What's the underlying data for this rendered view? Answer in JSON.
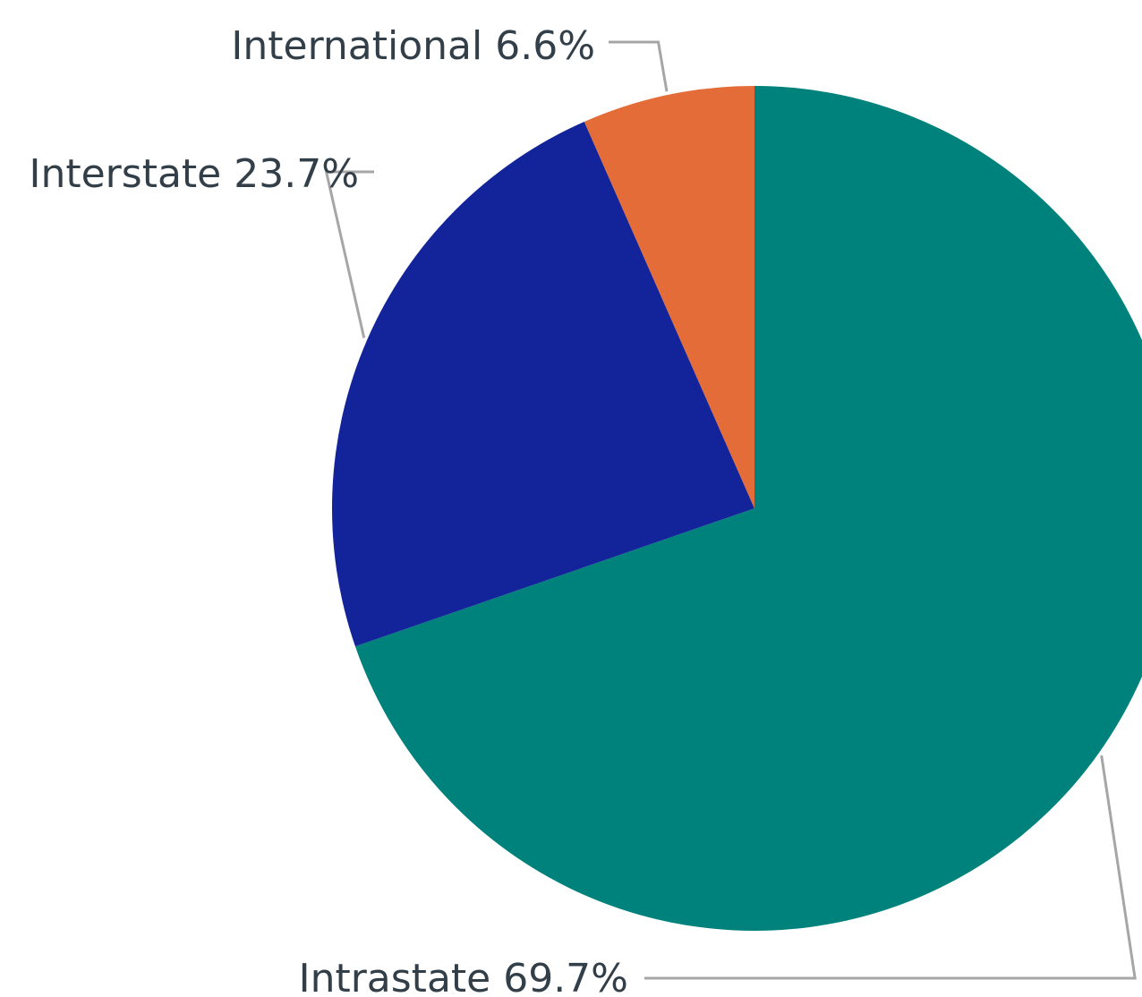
{
  "chart_data": {
    "type": "pie",
    "start_angle_deg": 0,
    "direction": "clockwise",
    "labels_format": "name + percent",
    "slices": [
      {
        "name": "Intrastate",
        "value": 69.7,
        "label": "Intrastate 69.7%",
        "color": "#00827c"
      },
      {
        "name": "Interstate",
        "value": 23.7,
        "label": "Interstate 23.7%",
        "color": "#13249b"
      },
      {
        "name": "International",
        "value": 6.6,
        "label": "International 6.6%",
        "color": "#e46c38"
      }
    ]
  }
}
